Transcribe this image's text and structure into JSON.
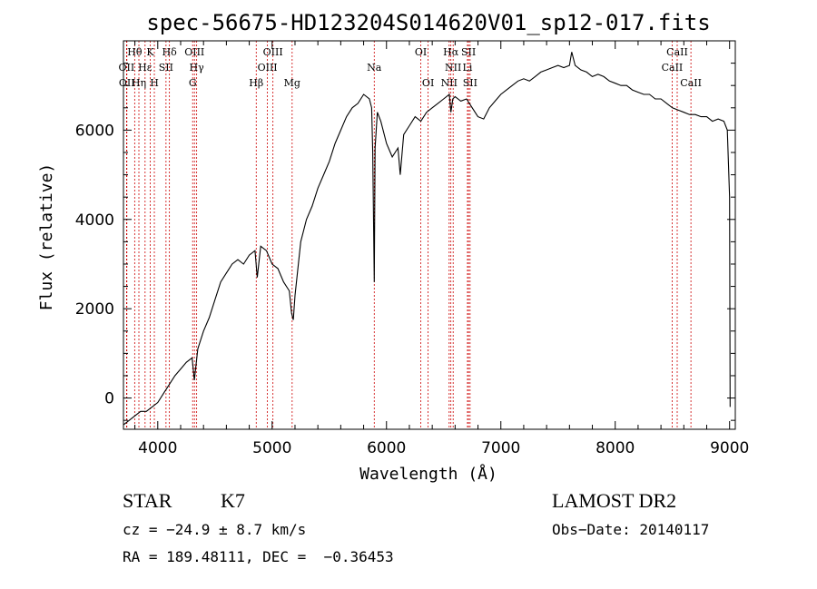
{
  "chart_data": {
    "type": "line",
    "title": "spec-56675-HD123204S014620V01_sp12-017.fits",
    "xlabel": "Wavelength (Å)",
    "ylabel": "Flux (relative)",
    "xlim": [
      3700,
      9050
    ],
    "ylim": [
      -700,
      8000
    ],
    "x_ticks": [
      4000,
      5000,
      6000,
      7000,
      8000,
      9000
    ],
    "y_ticks": [
      0,
      2000,
      4000,
      6000
    ],
    "grid": false,
    "line_color": "#000000",
    "marker_color": "#cc0000",
    "series": [
      {
        "x": [
          3700,
          3750,
          3800,
          3850,
          3900,
          3950,
          4000,
          4050,
          4100,
          4150,
          4200,
          4250,
          4300,
          4320,
          4350,
          4400,
          4450,
          4500,
          4550,
          4600,
          4650,
          4700,
          4750,
          4800,
          4850,
          4870,
          4900,
          4950,
          5000,
          5050,
          5100,
          5150,
          5170,
          5185,
          5200,
          5250,
          5300,
          5350,
          5400,
          5450,
          5500,
          5550,
          5600,
          5650,
          5700,
          5750,
          5800,
          5850,
          5870,
          5880,
          5893,
          5900,
          5920,
          5950,
          6000,
          6050,
          6100,
          6120,
          6150,
          6200,
          6250,
          6300,
          6350,
          6400,
          6450,
          6500,
          6550,
          6563,
          6580,
          6600,
          6650,
          6700,
          6750,
          6800,
          6850,
          6900,
          6950,
          7000,
          7050,
          7100,
          7150,
          7200,
          7250,
          7300,
          7350,
          7400,
          7450,
          7500,
          7550,
          7600,
          7620,
          7650,
          7700,
          7750,
          7800,
          7850,
          7900,
          7950,
          8000,
          8050,
          8100,
          8150,
          8200,
          8250,
          8300,
          8350,
          8400,
          8450,
          8500,
          8550,
          8600,
          8650,
          8700,
          8750,
          8800,
          8850,
          8900,
          8950,
          8980,
          9000,
          9005
        ],
        "y": [
          -600,
          -500,
          -400,
          -300,
          -300,
          -200,
          -100,
          100,
          300,
          500,
          650,
          800,
          900,
          400,
          1100,
          1500,
          1800,
          2200,
          2600,
          2800,
          3000,
          3100,
          3000,
          3200,
          3300,
          2700,
          3400,
          3300,
          3000,
          2900,
          2600,
          2400,
          1900,
          1750,
          2300,
          3500,
          4000,
          4300,
          4700,
          5000,
          5300,
          5700,
          6000,
          6300,
          6500,
          6600,
          6800,
          6700,
          6500,
          5500,
          2600,
          5600,
          6400,
          6200,
          5700,
          5400,
          5600,
          5000,
          5900,
          6100,
          6300,
          6200,
          6400,
          6500,
          6600,
          6700,
          6800,
          6400,
          6700,
          6750,
          6650,
          6700,
          6500,
          6300,
          6250,
          6500,
          6650,
          6800,
          6900,
          7000,
          7100,
          7150,
          7100,
          7200,
          7300,
          7350,
          7400,
          7450,
          7400,
          7450,
          7750,
          7450,
          7350,
          7300,
          7200,
          7250,
          7200,
          7100,
          7050,
          7000,
          7000,
          6900,
          6850,
          6800,
          6800,
          6700,
          6700,
          6600,
          6500,
          6450,
          6400,
          6350,
          6350,
          6300,
          6300,
          6200,
          6250,
          6200,
          6000,
          4500,
          -200
        ]
      }
    ],
    "lines": [
      {
        "label": "Hθ",
        "x": 3798,
        "row": 1
      },
      {
        "label": "OII",
        "x": 3727,
        "row": 2
      },
      {
        "label": "OII",
        "x": 3730,
        "row": 3
      },
      {
        "label": "Hη",
        "x": 3835,
        "row": 3
      },
      {
        "label": "Hε",
        "x": 3889,
        "row": 2
      },
      {
        "label": "K",
        "x": 3934,
        "row": 1
      },
      {
        "label": "H",
        "x": 3970,
        "row": 3
      },
      {
        "label": "SII",
        "x": 4072,
        "row": 2
      },
      {
        "label": "Hδ",
        "x": 4102,
        "row": 1
      },
      {
        "label": "G",
        "x": 4305,
        "row": 3
      },
      {
        "label": "OIII",
        "x": 4321,
        "row": 1
      },
      {
        "label": "Hγ",
        "x": 4340,
        "row": 2
      },
      {
        "label": "Hβ",
        "x": 4861,
        "row": 3
      },
      {
        "label": "OIII",
        "x": 4959,
        "row": 2
      },
      {
        "label": "OIII",
        "x": 5007,
        "row": 1
      },
      {
        "label": "Mg",
        "x": 5175,
        "row": 3
      },
      {
        "label": "Na",
        "x": 5893,
        "row": 2
      },
      {
        "label": "OI",
        "x": 6300,
        "row": 1
      },
      {
        "label": "OI",
        "x": 6364,
        "row": 3
      },
      {
        "label": "NII",
        "x": 6548,
        "row": 3
      },
      {
        "label": "Hα",
        "x": 6563,
        "row": 1
      },
      {
        "label": "NII",
        "x": 6583,
        "row": 2
      },
      {
        "label": "Li",
        "x": 6708,
        "row": 2
      },
      {
        "label": "SII",
        "x": 6717,
        "row": 1
      },
      {
        "label": "SII",
        "x": 6731,
        "row": 3
      },
      {
        "label": "CaII",
        "x": 8498,
        "row": 2
      },
      {
        "label": "CaII",
        "x": 8542,
        "row": 1
      },
      {
        "label": "CaII",
        "x": 8662,
        "row": 3
      }
    ]
  },
  "info": {
    "object_class": "STAR",
    "subclass": "K7",
    "survey": "LAMOST DR2",
    "cz": "cz = −24.9 ± 8.7 km/s",
    "obs_date": "Obs−Date: 20140117",
    "coords": "RA = 189.48111, DEC =  −0.36453"
  }
}
